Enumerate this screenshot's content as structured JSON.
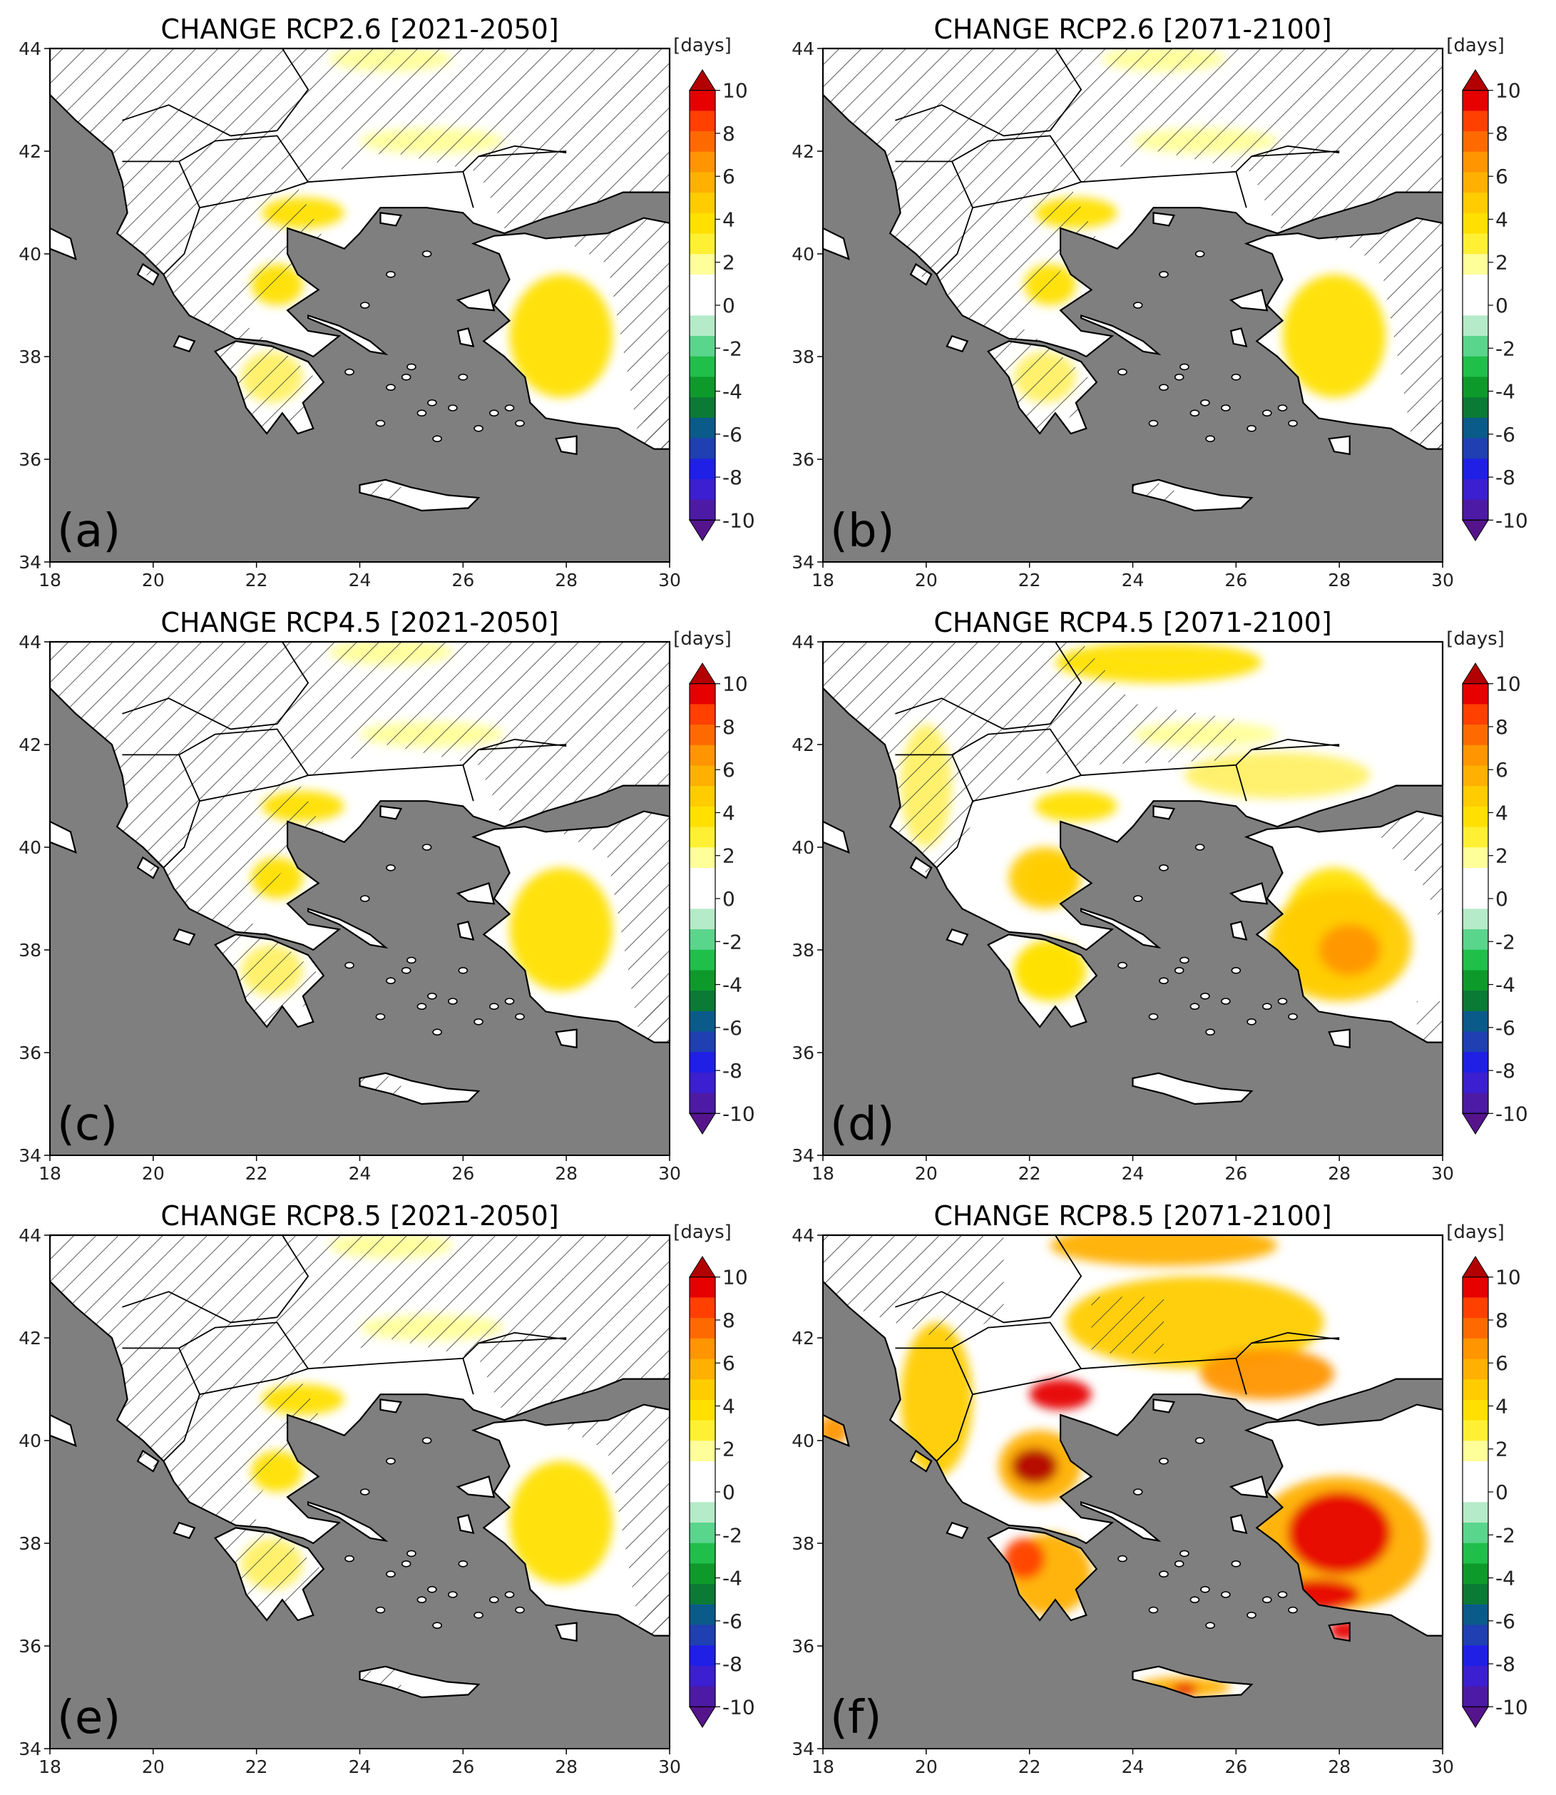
{
  "figure": {
    "x_ticks": [
      "18",
      "20",
      "22",
      "24",
      "26",
      "28",
      "30"
    ],
    "y_ticks": [
      "34",
      "36",
      "38",
      "40",
      "42",
      "44"
    ],
    "colorbar_unit": "[days]",
    "colorbar_ticks": [
      "10",
      "8",
      "6",
      "4",
      "2",
      "0",
      "-2",
      "-4",
      "-6",
      "-8",
      "-10"
    ],
    "colorbar_levels": [
      "#b30000",
      "#e60000",
      "#ff4000",
      "#ff6a00",
      "#ff9500",
      "#ffb000",
      "#ffcc00",
      "#ffe000",
      "#fff033",
      "#ffff99",
      "#ffffff",
      "#ffffff",
      "#b5ebc8",
      "#5ad58c",
      "#1fbf4a",
      "#0d9a2a",
      "#0a7a35",
      "#0a5a8a",
      "#1f3fb3",
      "#1f1fe6",
      "#3b1fd0",
      "#4d1aa6",
      "#55148c"
    ],
    "land_no_change_color": "#ffffff",
    "sea_color": "#7f7f7f",
    "hatching": "non-significant change"
  },
  "panels": [
    {
      "title": "CHANGE RCP2.6 [2021-2050]",
      "label": "(a)",
      "intensity": 1
    },
    {
      "title": "CHANGE RCP2.6 [2071-2100]",
      "label": "(b)",
      "intensity": 1
    },
    {
      "title": "CHANGE RCP4.5 [2021-2050]",
      "label": "(c)",
      "intensity": 1
    },
    {
      "title": "CHANGE RCP4.5 [2071-2100]",
      "label": "(d)",
      "intensity": 2
    },
    {
      "title": "CHANGE RCP8.5 [2021-2050]",
      "label": "(e)",
      "intensity": 1
    },
    {
      "title": "CHANGE RCP8.5 [2071-2100]",
      "label": "(f)",
      "intensity": 3
    }
  ]
}
